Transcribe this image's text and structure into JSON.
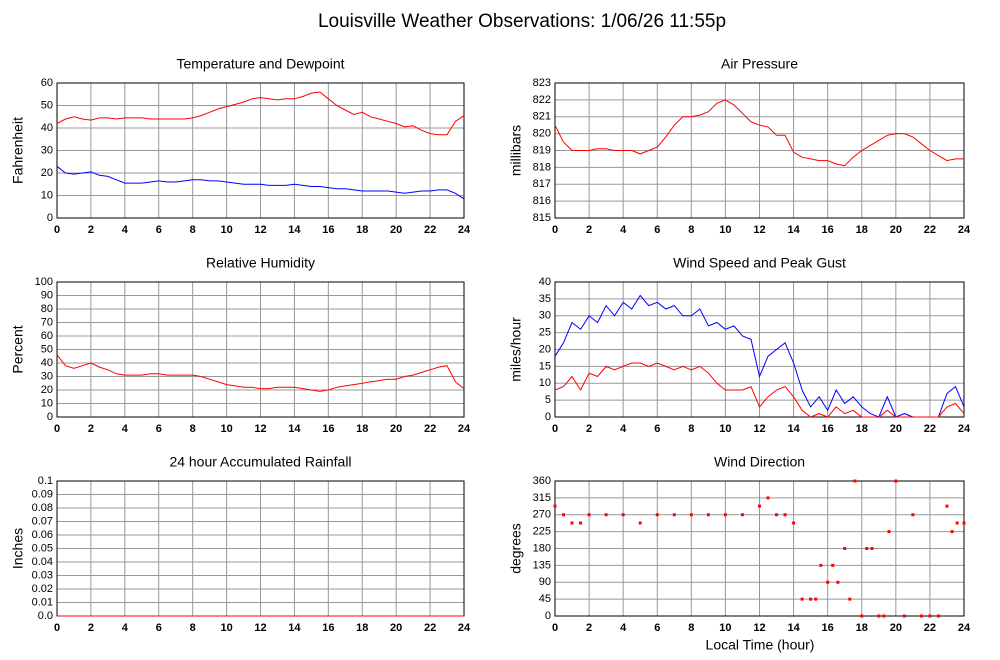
{
  "title": "Louisville Weather Observations: 1/06/26 11:55p",
  "xlabel": "Local Time (hour)",
  "chart_data": [
    {
      "type": "line",
      "title": "Temperature and Dewpoint",
      "ylabel": "Fahrenheit",
      "x": [
        0,
        0.5,
        1,
        1.5,
        2,
        2.5,
        3,
        3.5,
        4,
        4.5,
        5,
        5.5,
        6,
        6.5,
        7,
        7.5,
        8,
        8.5,
        9,
        9.5,
        10,
        10.5,
        11,
        11.5,
        12,
        12.5,
        13,
        13.5,
        14,
        14.5,
        15,
        15.5,
        16,
        16.5,
        17,
        17.5,
        18,
        18.5,
        19,
        19.5,
        20,
        20.5,
        21,
        21.5,
        22,
        22.5,
        23,
        23.5,
        24
      ],
      "series": [
        {
          "color": "#ff0000",
          "values": [
            42,
            44,
            45,
            44,
            43.5,
            44.5,
            44.5,
            44,
            44.5,
            44.5,
            44.5,
            44,
            44,
            44,
            44,
            44,
            44.5,
            45.5,
            47,
            48.5,
            49.5,
            50.5,
            51.5,
            53,
            53.5,
            53,
            52.5,
            53,
            53,
            54,
            55.5,
            56,
            53,
            50,
            48,
            46,
            47,
            45,
            44,
            43,
            42,
            40.5,
            41,
            39,
            37.5,
            37,
            37,
            43,
            45.5
          ]
        },
        {
          "color": "#0000ff",
          "values": [
            23,
            20,
            19.5,
            20,
            20.5,
            19,
            18.5,
            17,
            15.5,
            15.5,
            15.5,
            16,
            16.5,
            16,
            16,
            16.5,
            17,
            17,
            16.5,
            16.5,
            16,
            15.5,
            15,
            15,
            15,
            14.5,
            14.5,
            14.5,
            15,
            14.5,
            14,
            14,
            13.5,
            13,
            13,
            12.5,
            12,
            12,
            12,
            12,
            11.5,
            11,
            11.5,
            12,
            12,
            12.5,
            12.5,
            11,
            8.5
          ]
        }
      ],
      "xlim": [
        0,
        24
      ],
      "xticks": [
        0,
        2,
        4,
        6,
        8,
        10,
        12,
        14,
        16,
        18,
        20,
        22,
        24
      ],
      "ylim": [
        0,
        60
      ],
      "yticks": [
        0,
        10,
        20,
        30,
        40,
        50,
        60
      ],
      "grid": true
    },
    {
      "type": "line",
      "title": "Air Pressure",
      "ylabel": "millibars",
      "x": [
        0,
        0.5,
        1,
        1.5,
        2,
        2.5,
        3,
        3.5,
        4,
        4.5,
        5,
        5.5,
        6,
        6.5,
        7,
        7.5,
        8,
        8.5,
        9,
        9.5,
        10,
        10.5,
        11,
        11.5,
        12,
        12.5,
        13,
        13.5,
        14,
        14.5,
        15,
        15.5,
        16,
        16.5,
        17,
        17.5,
        18,
        18.5,
        19,
        19.5,
        20,
        20.5,
        21,
        21.5,
        22,
        22.5,
        23,
        23.5,
        24
      ],
      "series": [
        {
          "color": "#ff0000",
          "values": [
            820.5,
            819.5,
            819,
            819,
            819,
            819.1,
            819.1,
            819,
            819,
            819,
            818.8,
            819,
            819.2,
            819.8,
            820.5,
            821,
            821,
            821.1,
            821.3,
            821.8,
            822,
            821.7,
            821.2,
            820.7,
            820.5,
            820.4,
            819.9,
            819.9,
            818.9,
            818.6,
            818.5,
            818.4,
            818.4,
            818.2,
            818.1,
            818.6,
            819,
            819.3,
            819.6,
            819.9,
            820,
            820,
            819.8,
            819.4,
            819,
            818.7,
            818.4,
            818.5,
            818.5
          ]
        }
      ],
      "xlim": [
        0,
        24
      ],
      "xticks": [
        0,
        2,
        4,
        6,
        8,
        10,
        12,
        14,
        16,
        18,
        20,
        22,
        24
      ],
      "ylim": [
        815,
        823
      ],
      "yticks": [
        815,
        816,
        817,
        818,
        819,
        820,
        821,
        822,
        823
      ],
      "grid": true
    },
    {
      "type": "line",
      "title": "Relative Humidity",
      "ylabel": "Percent",
      "x": [
        0,
        0.5,
        1,
        1.5,
        2,
        2.5,
        3,
        3.5,
        4,
        4.5,
        5,
        5.5,
        6,
        6.5,
        7,
        7.5,
        8,
        8.5,
        9,
        9.5,
        10,
        10.5,
        11,
        11.5,
        12,
        12.5,
        13,
        13.5,
        14,
        14.5,
        15,
        15.5,
        16,
        16.5,
        17,
        17.5,
        18,
        18.5,
        19,
        19.5,
        20,
        20.5,
        21,
        21.5,
        22,
        22.5,
        23,
        23.5,
        24
      ],
      "series": [
        {
          "color": "#ff0000",
          "values": [
            46,
            38,
            36,
            38,
            40,
            37,
            35,
            32,
            31,
            31,
            31,
            32,
            32,
            31,
            31,
            31,
            31,
            30,
            28,
            26,
            24,
            23,
            22,
            22,
            21,
            21,
            22,
            22,
            22,
            21,
            20,
            19,
            20,
            22,
            23,
            24,
            25,
            26,
            27,
            28,
            28,
            30,
            31,
            33,
            35,
            37,
            38,
            26,
            21
          ]
        }
      ],
      "xlim": [
        0,
        24
      ],
      "xticks": [
        0,
        2,
        4,
        6,
        8,
        10,
        12,
        14,
        16,
        18,
        20,
        22,
        24
      ],
      "ylim": [
        0,
        100
      ],
      "yticks": [
        0,
        10,
        20,
        30,
        40,
        50,
        60,
        70,
        80,
        90,
        100
      ],
      "grid": true
    },
    {
      "type": "line",
      "title": "Wind Speed and Peak Gust",
      "ylabel": "miles/hour",
      "x": [
        0,
        0.5,
        1,
        1.5,
        2,
        2.5,
        3,
        3.5,
        4,
        4.5,
        5,
        5.5,
        6,
        6.5,
        7,
        7.5,
        8,
        8.5,
        9,
        9.5,
        10,
        10.5,
        11,
        11.5,
        12,
        12.5,
        13,
        13.5,
        14,
        14.5,
        15,
        15.5,
        16,
        16.5,
        17,
        17.5,
        18,
        18.5,
        19,
        19.5,
        20,
        20.5,
        21,
        21.5,
        22,
        22.5,
        23,
        23.5,
        24
      ],
      "series": [
        {
          "color": "#0000ff",
          "values": [
            18,
            22,
            28,
            26,
            30,
            28,
            33,
            30,
            34,
            32,
            36,
            33,
            34,
            32,
            33,
            30,
            30,
            32,
            27,
            28,
            26,
            27,
            24,
            23,
            12,
            18,
            20,
            22,
            16,
            8,
            3,
            6,
            2,
            8,
            4,
            6,
            3,
            1,
            0,
            6,
            0,
            1,
            0,
            0,
            0,
            0,
            7,
            9,
            3
          ]
        },
        {
          "color": "#ff0000",
          "values": [
            8,
            9,
            12,
            8,
            13,
            12,
            15,
            14,
            15,
            16,
            16,
            15,
            16,
            15,
            14,
            15,
            14,
            15,
            13,
            10,
            8,
            8,
            8,
            9,
            3,
            6,
            8,
            9,
            6,
            2,
            0,
            1,
            0,
            3,
            1,
            2,
            0,
            0,
            0,
            2,
            0,
            0,
            0,
            0,
            0,
            0,
            3,
            4,
            1
          ]
        }
      ],
      "xlim": [
        0,
        24
      ],
      "xticks": [
        0,
        2,
        4,
        6,
        8,
        10,
        12,
        14,
        16,
        18,
        20,
        22,
        24
      ],
      "ylim": [
        0,
        40
      ],
      "yticks": [
        0,
        5,
        10,
        15,
        20,
        25,
        30,
        35,
        40
      ],
      "grid": true
    },
    {
      "type": "line",
      "title": "24 hour Accumulated Rainfall",
      "ylabel": "Inches",
      "x": [
        0,
        24
      ],
      "series": [
        {
          "color": "#ff0000",
          "values": [
            0,
            0
          ]
        }
      ],
      "xlim": [
        0,
        24
      ],
      "xticks": [
        0,
        2,
        4,
        6,
        8,
        10,
        12,
        14,
        16,
        18,
        20,
        22,
        24
      ],
      "ylim": [
        0,
        0.1
      ],
      "yticks": [
        {
          "value": 0,
          "label": "0.0"
        },
        0.01,
        0.02,
        0.03,
        0.04,
        0.05,
        0.06,
        0.07,
        0.08,
        0.09,
        0.1
      ],
      "grid": true
    },
    {
      "type": "scatter",
      "title": "Wind Direction",
      "ylabel": "degrees",
      "x": [
        0,
        0.5,
        1,
        1.5,
        2,
        3,
        4,
        5,
        6,
        7,
        8,
        9,
        10,
        11,
        12,
        12.5,
        13,
        13.5,
        14,
        14.5,
        15,
        15.3,
        15.6,
        16,
        16.3,
        16.6,
        17,
        17.3,
        17.6,
        18,
        18.3,
        18.6,
        19,
        19.3,
        19.6,
        20,
        20.5,
        21,
        21.5,
        22,
        22.5,
        23,
        23.3,
        23.6,
        24
      ],
      "series": [
        {
          "color": "#ff0000",
          "values": [
            293,
            270,
            248,
            248,
            270,
            270,
            270,
            248,
            270,
            270,
            270,
            270,
            270,
            270,
            293,
            315,
            270,
            270,
            248,
            45,
            45,
            45,
            135,
            90,
            135,
            90,
            180,
            45,
            360,
            0,
            180,
            180,
            0,
            0,
            225,
            360,
            0,
            270,
            0,
            0,
            0,
            293,
            225,
            248,
            248
          ]
        }
      ],
      "xlim": [
        0,
        24
      ],
      "xticks": [
        0,
        2,
        4,
        6,
        8,
        10,
        12,
        14,
        16,
        18,
        20,
        22,
        24
      ],
      "ylim": [
        0,
        360
      ],
      "yticks": [
        0,
        45,
        90,
        135,
        180,
        225,
        270,
        315,
        360
      ],
      "grid": true
    }
  ]
}
